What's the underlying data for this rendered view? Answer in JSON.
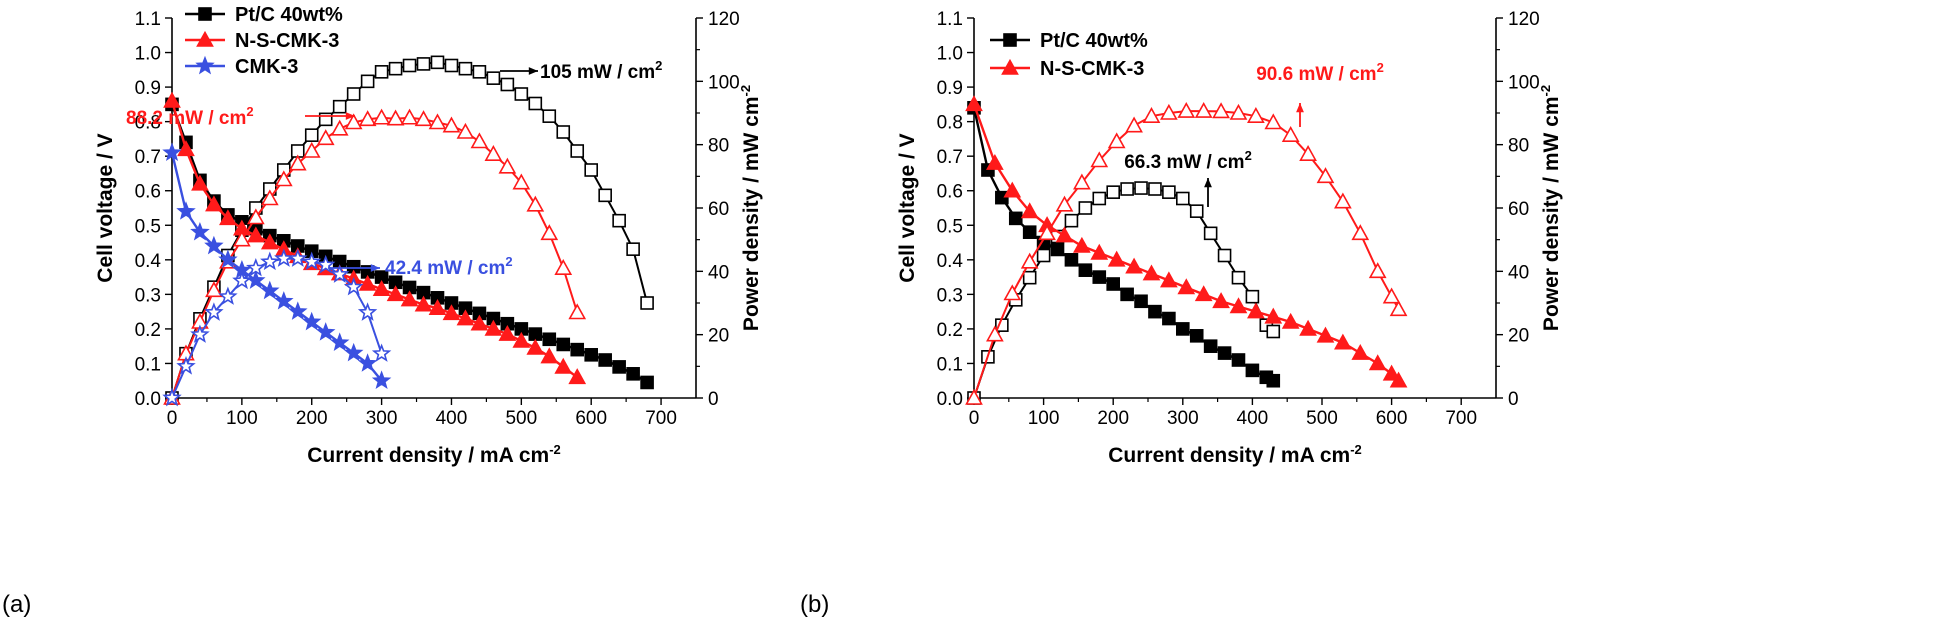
{
  "colors": {
    "black": "#000000",
    "red": "#ff1a1a",
    "blue": "#3a50e0"
  },
  "chart_data": [
    {
      "panel": "(a)",
      "type": "line",
      "xlabel": "Current density / mA cm",
      "xlabel_sup": "-2",
      "ylabel_left": "Cell voltage / V",
      "ylabel_right": "Power density / mW cm",
      "ylabel_right_sup": "-2",
      "xlim": [
        0,
        750
      ],
      "ylim_left": [
        0,
        1.1
      ],
      "ylim_right": [
        0,
        120
      ],
      "xticks": [
        "0",
        "100",
        "200",
        "300",
        "400",
        "500",
        "600",
        "700"
      ],
      "yticks_left": [
        "0.0",
        "0.1",
        "0.2",
        "0.3",
        "0.4",
        "0.5",
        "0.6",
        "0.7",
        "0.8",
        "0.9",
        "1.0",
        "1.1"
      ],
      "yticks_right": [
        "0",
        "20",
        "40",
        "60",
        "80",
        "100",
        "120"
      ],
      "legend_position": "top-left",
      "series": [
        {
          "name": "Pt/C 40wt%",
          "color_key": "black",
          "marker": "square",
          "x": [
            0,
            20,
            40,
            60,
            80,
            100,
            120,
            140,
            160,
            180,
            200,
            220,
            240,
            260,
            280,
            300,
            320,
            340,
            360,
            380,
            400,
            420,
            440,
            460,
            480,
            500,
            520,
            540,
            560,
            580,
            600,
            620,
            640,
            660,
            680
          ],
          "voltage": [
            0.85,
            0.74,
            0.63,
            0.57,
            0.53,
            0.51,
            0.49,
            0.47,
            0.455,
            0.44,
            0.425,
            0.41,
            0.395,
            0.38,
            0.365,
            0.35,
            0.335,
            0.32,
            0.305,
            0.29,
            0.275,
            0.26,
            0.245,
            0.23,
            0.215,
            0.2,
            0.185,
            0.17,
            0.155,
            0.14,
            0.125,
            0.11,
            0.09,
            0.07,
            0.045
          ],
          "power": [
            0,
            14,
            25,
            35,
            45,
            53,
            60,
            66,
            72,
            78,
            83,
            88,
            92,
            96,
            100,
            103,
            104,
            105,
            105.5,
            106,
            105,
            104,
            103,
            101,
            99,
            96,
            93,
            89,
            84,
            78,
            72,
            64,
            56,
            47,
            30
          ]
        },
        {
          "name": "N-S-CMK-3",
          "color_key": "red",
          "marker": "triangle",
          "x": [
            0,
            20,
            40,
            60,
            80,
            100,
            120,
            140,
            160,
            180,
            200,
            220,
            240,
            260,
            280,
            300,
            320,
            340,
            360,
            380,
            400,
            420,
            440,
            460,
            480,
            500,
            520,
            540,
            560,
            580
          ],
          "voltage": [
            0.86,
            0.72,
            0.62,
            0.56,
            0.52,
            0.49,
            0.47,
            0.45,
            0.43,
            0.41,
            0.39,
            0.375,
            0.36,
            0.345,
            0.33,
            0.315,
            0.3,
            0.285,
            0.27,
            0.26,
            0.245,
            0.23,
            0.215,
            0.2,
            0.185,
            0.165,
            0.145,
            0.12,
            0.09,
            0.06
          ],
          "power": [
            0,
            14,
            24,
            34,
            43,
            50,
            57,
            63,
            69,
            74,
            78,
            82,
            85,
            87,
            88,
            88.5,
            88.2,
            88.5,
            88,
            87,
            86,
            84,
            81,
            77,
            73,
            68,
            61,
            52,
            41,
            27
          ]
        },
        {
          "name": "CMK-3",
          "color_key": "blue",
          "marker": "star",
          "x": [
            0,
            20,
            40,
            60,
            80,
            100,
            120,
            140,
            160,
            180,
            200,
            220,
            240,
            260,
            280,
            300
          ],
          "voltage": [
            0.71,
            0.54,
            0.48,
            0.44,
            0.4,
            0.37,
            0.34,
            0.31,
            0.28,
            0.25,
            0.22,
            0.19,
            0.16,
            0.13,
            0.1,
            0.05
          ],
          "power": [
            0,
            10,
            20,
            27,
            32,
            37,
            41,
            43,
            44,
            44,
            43,
            42,
            39,
            35,
            27,
            14
          ]
        }
      ],
      "annotations": [
        {
          "text": "105 mW / cm",
          "sup": "2",
          "color_key": "black"
        },
        {
          "text": "88.2 mW / cm",
          "sup": "2",
          "color_key": "red"
        },
        {
          "text": "42.4 mW / cm",
          "sup": "2",
          "color_key": "blue"
        }
      ]
    },
    {
      "panel": "(b)",
      "type": "line",
      "xlabel": "Current density / mA cm",
      "xlabel_sup": "-2",
      "ylabel_left": "Cell voltage / V",
      "ylabel_right": "Power density / mW cm",
      "ylabel_right_sup": "-2",
      "xlim": [
        0,
        750
      ],
      "ylim_left": [
        0,
        1.1
      ],
      "ylim_right": [
        0,
        120
      ],
      "xticks": [
        "0",
        "100",
        "200",
        "300",
        "400",
        "500",
        "600",
        "700"
      ],
      "yticks_left": [
        "0.0",
        "0.1",
        "0.2",
        "0.3",
        "0.4",
        "0.5",
        "0.6",
        "0.7",
        "0.8",
        "0.9",
        "1.0",
        "1.1"
      ],
      "yticks_right": [
        "0",
        "20",
        "40",
        "60",
        "80",
        "100",
        "120"
      ],
      "legend_position": "top-left",
      "series": [
        {
          "name": "Pt/C 40wt%",
          "color_key": "black",
          "marker": "square",
          "x": [
            0,
            20,
            40,
            60,
            80,
            100,
            120,
            140,
            160,
            180,
            200,
            220,
            240,
            260,
            280,
            300,
            320,
            340,
            360,
            380,
            400,
            420,
            430
          ],
          "voltage": [
            0.84,
            0.66,
            0.58,
            0.52,
            0.48,
            0.45,
            0.43,
            0.4,
            0.37,
            0.35,
            0.33,
            0.3,
            0.28,
            0.25,
            0.23,
            0.2,
            0.18,
            0.15,
            0.13,
            0.11,
            0.08,
            0.06,
            0.05
          ],
          "power": [
            0,
            13,
            23,
            31,
            38,
            45,
            51,
            56,
            60,
            63,
            65,
            66,
            66.3,
            66,
            65,
            63,
            59,
            52,
            45,
            38,
            32,
            23,
            21
          ]
        },
        {
          "name": "N-S-CMK-3",
          "color_key": "red",
          "marker": "triangle",
          "x": [
            0,
            30,
            55,
            80,
            105,
            130,
            155,
            180,
            205,
            230,
            255,
            280,
            305,
            330,
            355,
            380,
            405,
            430,
            455,
            480,
            505,
            530,
            555,
            580,
            600,
            610
          ],
          "voltage": [
            0.85,
            0.68,
            0.6,
            0.54,
            0.5,
            0.47,
            0.44,
            0.42,
            0.4,
            0.38,
            0.36,
            0.34,
            0.32,
            0.3,
            0.28,
            0.265,
            0.25,
            0.235,
            0.22,
            0.2,
            0.18,
            0.16,
            0.13,
            0.1,
            0.07,
            0.05
          ],
          "power": [
            0,
            20,
            33,
            43,
            52,
            61,
            68,
            75,
            81,
            86,
            89,
            90,
            90.6,
            90.6,
            90.5,
            90,
            89,
            87,
            83,
            77,
            70,
            62,
            52,
            40,
            32,
            28
          ]
        }
      ],
      "annotations": [
        {
          "text": "90.6 mW / cm",
          "sup": "2",
          "color_key": "red"
        },
        {
          "text": "66.3 mW / cm",
          "sup": "2",
          "color_key": "black"
        }
      ]
    }
  ]
}
